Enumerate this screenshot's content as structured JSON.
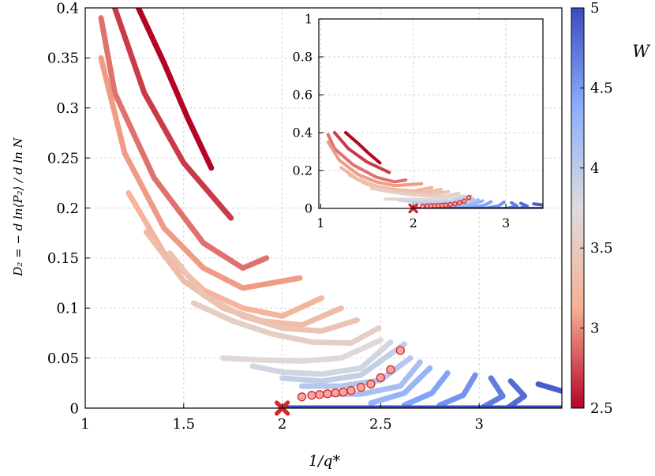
{
  "chart_data": {
    "type": "line",
    "xlabel": "1/q*",
    "ylabel": "D₂ = − d ln⟨P₂⟩ / d ln N",
    "xlim": [
      1,
      3.42
    ],
    "ylim": [
      0,
      0.4
    ],
    "xticks": [
      1,
      1.5,
      2,
      2.5,
      3
    ],
    "xtick_labels": [
      "1",
      "1.5",
      "2",
      "2.5",
      "3"
    ],
    "yticks": [
      0,
      0.05,
      0.1,
      0.15,
      0.2,
      0.25,
      0.3,
      0.35,
      0.4
    ],
    "ytick_labels": [
      "0",
      "0.05",
      "0.1",
      "0.15",
      "0.2",
      "0.25",
      "0.3",
      "0.35",
      "0.4"
    ],
    "grid": true,
    "colorbar": {
      "label": "W",
      "range": [
        2.5,
        5
      ],
      "ticks": [
        2.5,
        3,
        3.5,
        4,
        4.5,
        5
      ],
      "tick_labels": [
        "2.5",
        "3",
        "3.5",
        "4",
        "4.5",
        "5"
      ],
      "colormap": [
        "#b40426",
        "#f7b093",
        "#dddcdc",
        "#8caffe",
        "#3b4cc0"
      ]
    },
    "series": [
      {
        "W": 2.5,
        "x": [
          1.27,
          1.4,
          1.52,
          1.64
        ],
        "y": [
          0.4,
          0.345,
          0.29,
          0.24
        ]
      },
      {
        "W": 2.7,
        "x": [
          1.15,
          1.3,
          1.5,
          1.74
        ],
        "y": [
          0.4,
          0.315,
          0.245,
          0.19
        ]
      },
      {
        "W": 2.9,
        "x": [
          1.08,
          1.15,
          1.35,
          1.6,
          1.8,
          1.92
        ],
        "y": [
          0.39,
          0.315,
          0.23,
          0.165,
          0.14,
          0.15
        ]
      },
      {
        "W": 3.05,
        "x": [
          1.08,
          1.2,
          1.4,
          1.6,
          1.8,
          2.09
        ],
        "y": [
          0.35,
          0.255,
          0.18,
          0.14,
          0.12,
          0.13
        ]
      },
      {
        "W": 3.2,
        "x": [
          1.22,
          1.4,
          1.6,
          1.8,
          2.0,
          2.2
        ],
        "y": [
          0.215,
          0.155,
          0.118,
          0.1,
          0.092,
          0.11
        ]
      },
      {
        "W": 3.3,
        "x": [
          1.31,
          1.5,
          1.7,
          1.9,
          2.1,
          2.3
        ],
        "y": [
          0.176,
          0.127,
          0.1,
          0.087,
          0.083,
          0.1
        ]
      },
      {
        "W": 3.4,
        "x": [
          1.43,
          1.6,
          1.8,
          2.0,
          2.2,
          2.38
        ],
        "y": [
          0.155,
          0.113,
          0.092,
          0.08,
          0.077,
          0.088
        ]
      },
      {
        "W": 3.55,
        "x": [
          1.55,
          1.75,
          1.95,
          2.15,
          2.35,
          2.49
        ],
        "y": [
          0.105,
          0.087,
          0.074,
          0.066,
          0.065,
          0.08
        ]
      },
      {
        "W": 3.7,
        "x": [
          1.7,
          1.9,
          2.1,
          2.3,
          2.5
        ],
        "y": [
          0.05,
          0.048,
          0.047,
          0.05,
          0.068
        ]
      },
      {
        "W": 3.85,
        "x": [
          1.85,
          2.0,
          2.2,
          2.4,
          2.55
        ],
        "y": [
          0.042,
          0.036,
          0.034,
          0.04,
          0.066
        ]
      },
      {
        "W": 3.95,
        "x": [
          2.0,
          2.2,
          2.4,
          2.62
        ],
        "y": [
          0.03,
          0.027,
          0.033,
          0.064
        ]
      },
      {
        "W": 4.05,
        "x": [
          2.1,
          2.3,
          2.5,
          2.65
        ],
        "y": [
          0.022,
          0.022,
          0.028,
          0.05
        ]
      },
      {
        "W": 4.15,
        "x": [
          2.2,
          2.4,
          2.6,
          2.7
        ],
        "y": [
          0.014,
          0.014,
          0.022,
          0.046
        ]
      },
      {
        "W": 4.3,
        "x": [
          2.45,
          2.62,
          2.75
        ],
        "y": [
          0.005,
          0.015,
          0.04
        ]
      },
      {
        "W": 4.45,
        "x": [
          2.62,
          2.76,
          2.84
        ],
        "y": [
          0.003,
          0.015,
          0.035
        ]
      },
      {
        "W": 4.55,
        "x": [
          2.8,
          2.92,
          2.98
        ],
        "y": [
          0.003,
          0.013,
          0.033
        ]
      },
      {
        "W": 4.7,
        "x": [
          3.02,
          3.12,
          3.06
        ],
        "y": [
          0.001,
          0.012,
          0.03
        ]
      },
      {
        "W": 4.8,
        "x": [
          3.15,
          3.23,
          3.16
        ],
        "y": [
          0.001,
          0.012,
          0.027
        ]
      },
      {
        "W": 4.9,
        "x": [
          3.3,
          3.42
        ],
        "y": [
          0.024,
          0.017
        ]
      },
      {
        "W": 5.0,
        "x": [
          2.0,
          3.42
        ],
        "y": [
          0.0,
          0.0
        ]
      }
    ],
    "markers": {
      "x": [
        2.1,
        2.15,
        2.19,
        2.23,
        2.27,
        2.31,
        2.35,
        2.4,
        2.45,
        2.5,
        2.55,
        2.6
      ],
      "y": [
        0.0112,
        0.0128,
        0.0136,
        0.0144,
        0.0152,
        0.016,
        0.0176,
        0.0208,
        0.024,
        0.0304,
        0.0384,
        0.0576
      ],
      "cross": {
        "x": 2.0,
        "y": 0.0
      },
      "edge_color": "#d62728"
    },
    "inset": {
      "xlim": [
        0.98,
        3.4
      ],
      "ylim": [
        0,
        1
      ],
      "xticks": [
        1,
        2,
        3
      ],
      "xtick_labels": [
        "1",
        "2",
        "3"
      ],
      "yticks": [
        0,
        0.2,
        0.4,
        0.6,
        0.8,
        1
      ],
      "ytick_labels": [
        "0",
        "0.2",
        "0.4",
        "0.6",
        "0.8",
        "1"
      ]
    }
  }
}
